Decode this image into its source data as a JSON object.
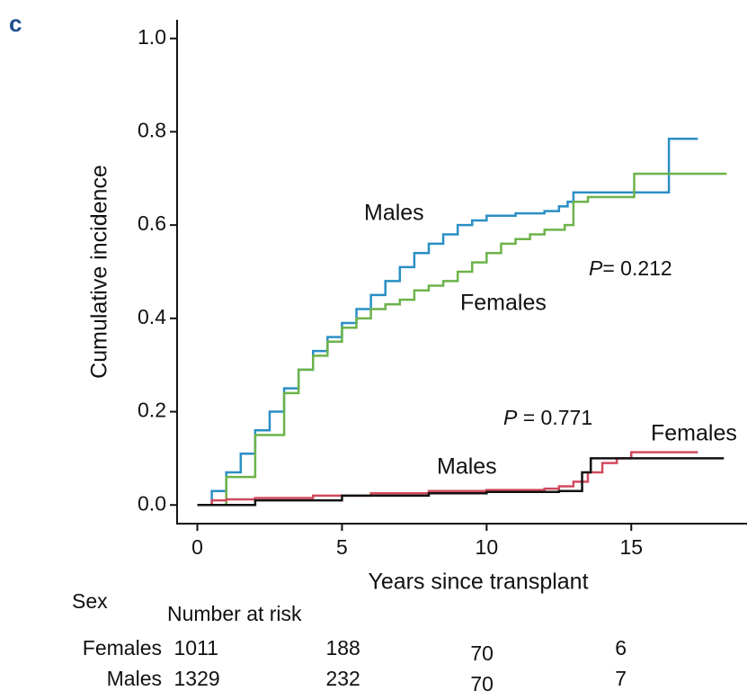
{
  "panel_label": "c",
  "chart_data": {
    "type": "step",
    "xlabel": "Years since transplant",
    "ylabel": "Cumulative incidence",
    "xlim": [
      -0.7,
      19
    ],
    "ylim": [
      -0.04,
      1.04
    ],
    "xticks": [
      0,
      5,
      10,
      15
    ],
    "yticks": [
      {
        "value": 0,
        "label": "0.0"
      },
      {
        "value": 0.2,
        "label": "0.2"
      },
      {
        "value": 0.4,
        "label": "0.4"
      },
      {
        "value": 0.6,
        "label": "0.6"
      },
      {
        "value": 0.8,
        "label": "0.8"
      },
      {
        "value": 1,
        "label": "1.0"
      }
    ],
    "series": [
      {
        "name": "Males",
        "color": "#2a8fc4",
        "x": [
          0,
          0.5,
          1,
          1.5,
          2,
          2.5,
          3,
          3.5,
          4,
          4.5,
          5,
          5.5,
          6,
          6.5,
          7,
          7.5,
          8,
          8.5,
          9,
          9.5,
          10,
          11,
          12,
          12.5,
          12.8,
          13,
          16.3,
          17.3
        ],
        "values": [
          0,
          0.03,
          0.07,
          0.11,
          0.16,
          0.2,
          0.25,
          0.29,
          0.33,
          0.36,
          0.39,
          0.42,
          0.45,
          0.48,
          0.51,
          0.54,
          0.56,
          0.58,
          0.6,
          0.61,
          0.62,
          0.625,
          0.63,
          0.64,
          0.65,
          0.67,
          0.785,
          0.785
        ]
      },
      {
        "name": "Females",
        "color": "#6cb34a",
        "x": [
          0,
          1,
          2,
          3,
          3.5,
          4,
          4.5,
          5,
          5.5,
          6,
          6.5,
          7,
          7.5,
          8,
          8.5,
          9,
          9.5,
          10,
          10.5,
          11,
          11.5,
          12,
          12.7,
          13,
          13.5,
          15.1,
          18.3
        ],
        "values": [
          0,
          0.06,
          0.15,
          0.24,
          0.29,
          0.32,
          0.35,
          0.38,
          0.4,
          0.42,
          0.43,
          0.44,
          0.46,
          0.47,
          0.48,
          0.5,
          0.52,
          0.54,
          0.56,
          0.57,
          0.58,
          0.59,
          0.6,
          0.65,
          0.66,
          0.71,
          0.71
        ]
      },
      {
        "name": "Males",
        "color": "#d24a5f",
        "x": [
          0,
          0.5,
          1,
          2,
          4,
          6,
          8,
          10,
          12,
          12.5,
          13,
          13.5,
          14,
          14.5,
          15,
          17.3
        ],
        "values": [
          0,
          0.01,
          0.012,
          0.015,
          0.02,
          0.025,
          0.03,
          0.032,
          0.035,
          0.04,
          0.05,
          0.07,
          0.09,
          0.1,
          0.113,
          0.113
        ]
      },
      {
        "name": "Females",
        "color": "#111111",
        "x": [
          0,
          2,
          5,
          8,
          10,
          12.5,
          13.3,
          13.6,
          18.2
        ],
        "values": [
          0,
          0.01,
          0.02,
          0.025,
          0.028,
          0.03,
          0.07,
          0.1,
          0.1
        ]
      }
    ],
    "annotations": [
      {
        "italic": "P",
        "text": "= 0.212"
      },
      {
        "italic": "P",
        "text": " = 0.771"
      }
    ]
  },
  "risk_table": {
    "sex_header": "Sex",
    "header": "Number at risk",
    "rows": [
      {
        "label": "Females",
        "values": [
          1011,
          188,
          70,
          6
        ]
      },
      {
        "label": "Males",
        "values": [
          1329,
          232,
          70,
          7
        ]
      }
    ]
  }
}
